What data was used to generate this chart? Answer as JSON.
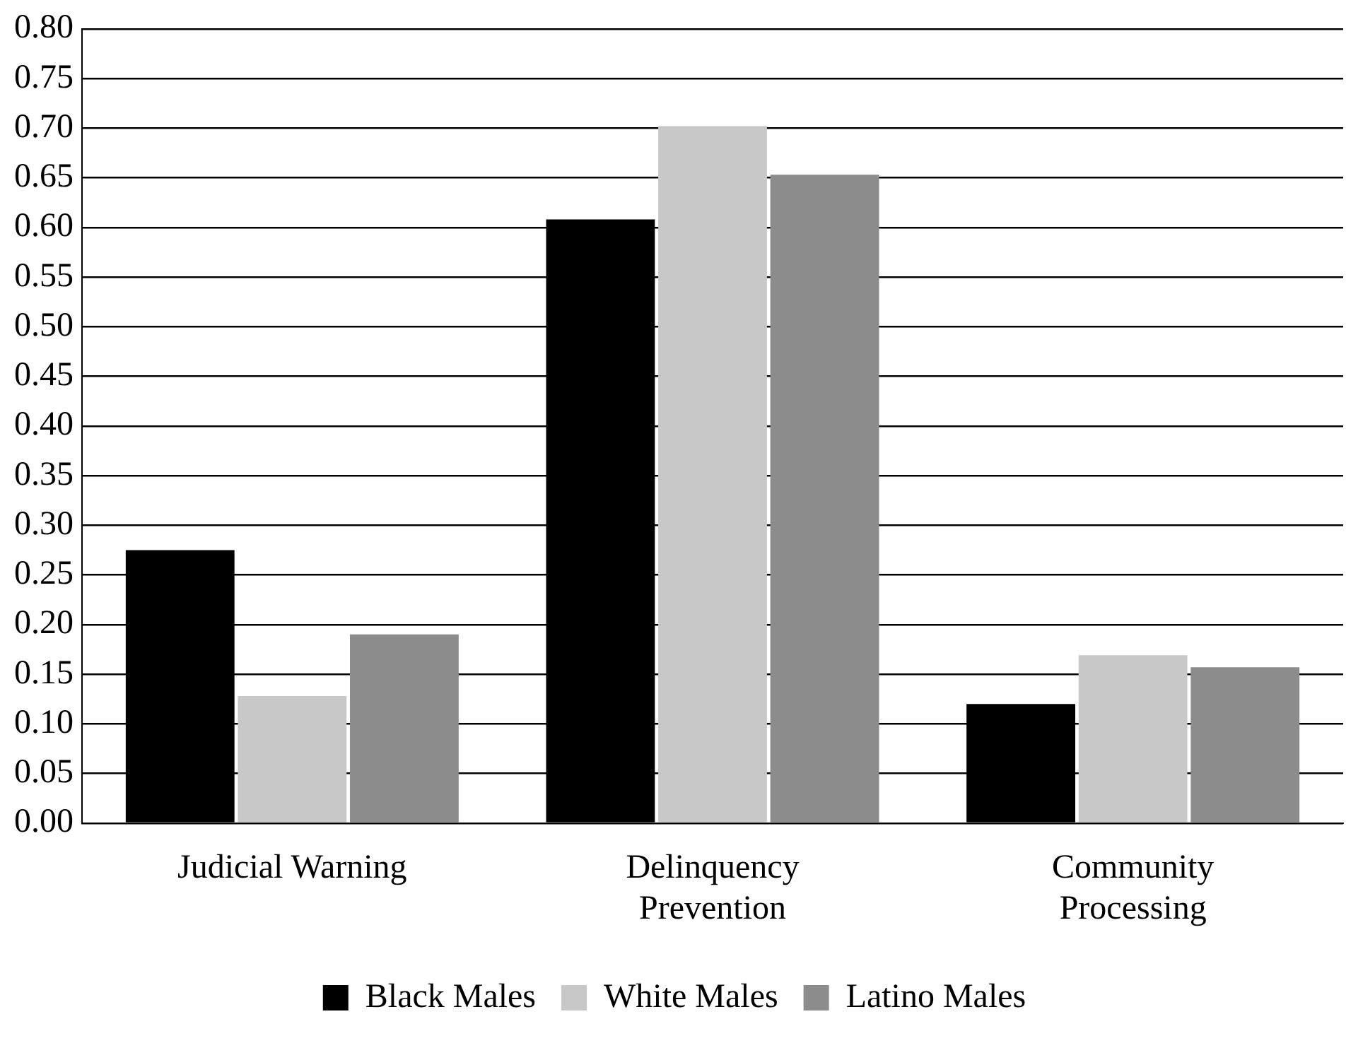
{
  "chart_data": {
    "type": "bar",
    "categories": [
      "Judicial Warning",
      "Delinquency Prevention",
      "Community Processing"
    ],
    "series": [
      {
        "name": "Black Males",
        "color": "#000000",
        "values": [
          0.275,
          0.608,
          0.12
        ]
      },
      {
        "name": "White Males",
        "color": "#c8c8c8",
        "values": [
          0.128,
          0.702,
          0.169
        ]
      },
      {
        "name": "Latino Males",
        "color": "#8c8c8c",
        "values": [
          0.19,
          0.653,
          0.157
        ]
      }
    ],
    "ylim": [
      0,
      0.8
    ],
    "yticks": [
      {
        "value": 0,
        "label": "0.00"
      },
      {
        "value": 0.05,
        "label": "0.05"
      },
      {
        "value": 0.1,
        "label": "0.10"
      },
      {
        "value": 0.15,
        "label": "0.15"
      },
      {
        "value": 0.2,
        "label": "0.20"
      },
      {
        "value": 0.25,
        "label": "0.25"
      },
      {
        "value": 0.3,
        "label": "0.30"
      },
      {
        "value": 0.35,
        "label": "0.35"
      },
      {
        "value": 0.4,
        "label": "0.40"
      },
      {
        "value": 0.45,
        "label": "0.45"
      },
      {
        "value": 0.5,
        "label": "0.50"
      },
      {
        "value": 0.55,
        "label": "0.55"
      },
      {
        "value": 0.6,
        "label": "0.60"
      },
      {
        "value": 0.65,
        "label": "0.65"
      },
      {
        "value": 0.7,
        "label": "0.70"
      },
      {
        "value": 0.75,
        "label": "0.75"
      },
      {
        "value": 0.8,
        "label": "0.80"
      }
    ],
    "grid": "y",
    "legend": "bottom"
  }
}
